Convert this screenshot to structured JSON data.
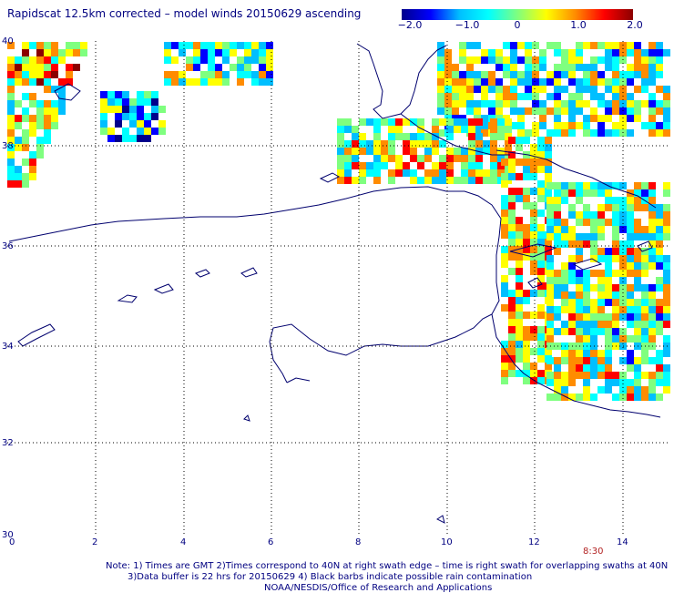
{
  "title": "Rapidscat 12.5km corrected – model winds 20150629 ascending",
  "colorbar": {
    "labels": [
      "−2.0",
      "−1.0",
      "0",
      "1.0",
      "2.0"
    ],
    "colors": [
      "#00008b",
      "#0000ff",
      "#00bfff",
      "#00ffff",
      "#7fff7f",
      "#ffff00",
      "#ff8c00",
      "#ff0000",
      "#8b0000"
    ]
  },
  "axes": {
    "x_ticks": [
      "0",
      "2",
      "4",
      "6",
      "8",
      "10",
      "12",
      "14"
    ],
    "y_ticks": [
      "40",
      "38",
      "36",
      "34",
      "32",
      "30"
    ]
  },
  "time_label": "8:30",
  "notes": [
    "Note: 1) Times are GMT 2)Times correspond to 40N at right swath edge – time is right swath for overlapping swaths at 40N",
    "3)Data buffer is 22 hrs for 20150629 4) Black barbs indicate possible rain contamination",
    "NOAA/NESDIS/Office of Research and Applications"
  ],
  "colors": {
    "text": "#000080",
    "coast": "#00006e",
    "grid": "#000000"
  }
}
